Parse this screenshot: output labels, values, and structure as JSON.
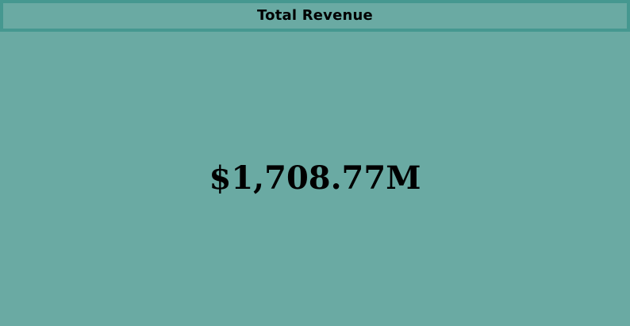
{
  "card": {
    "title": "Total Revenue",
    "value": "$1,708.77M"
  },
  "colors": {
    "background": "#6aaaa3",
    "header_border": "#459890",
    "text": "#000000"
  }
}
